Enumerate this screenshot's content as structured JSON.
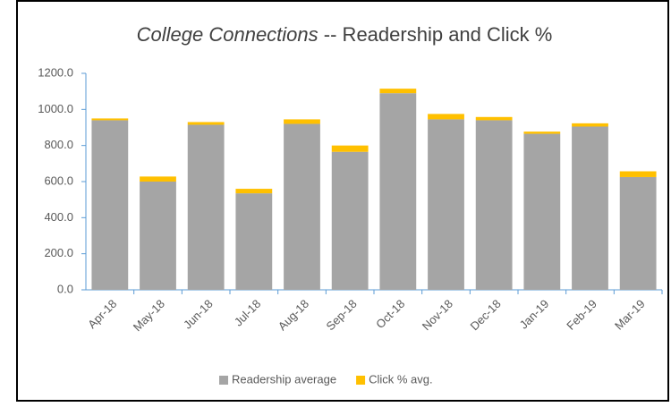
{
  "chart_data": {
    "type": "stacked_bar",
    "title": {
      "italic": "College Connections",
      "rest": "-- Readership and Click %"
    },
    "categories": [
      "Apr-18",
      "May-18",
      "Jun-18",
      "Jul-18",
      "Aug-18",
      "Sep-18",
      "Oct-18",
      "Nov-18",
      "Dec-18",
      "Jan-19",
      "Feb-19",
      "Mar-19"
    ],
    "series": [
      {
        "name": "Readership average",
        "color": "#a5a5a5",
        "values": [
          940,
          600,
          915,
          535,
          920,
          765,
          1090,
          945,
          940,
          865,
          905,
          625
        ]
      },
      {
        "name": "Click % avg.",
        "color": "#ffc000",
        "values": [
          10,
          28,
          15,
          25,
          25,
          35,
          25,
          30,
          18,
          12,
          18,
          32
        ]
      }
    ],
    "ylim": [
      0,
      1200
    ],
    "yticks": [
      {
        "value": 0,
        "label": "0.0"
      },
      {
        "value": 200,
        "label": "200.0"
      },
      {
        "value": 400,
        "label": "400.0"
      },
      {
        "value": 600,
        "label": "600.0"
      },
      {
        "value": 800,
        "label": "800.0"
      },
      {
        "value": 1000,
        "label": "1000.0"
      },
      {
        "value": 1200,
        "label": "1200.0"
      }
    ],
    "legend": "bottom"
  }
}
